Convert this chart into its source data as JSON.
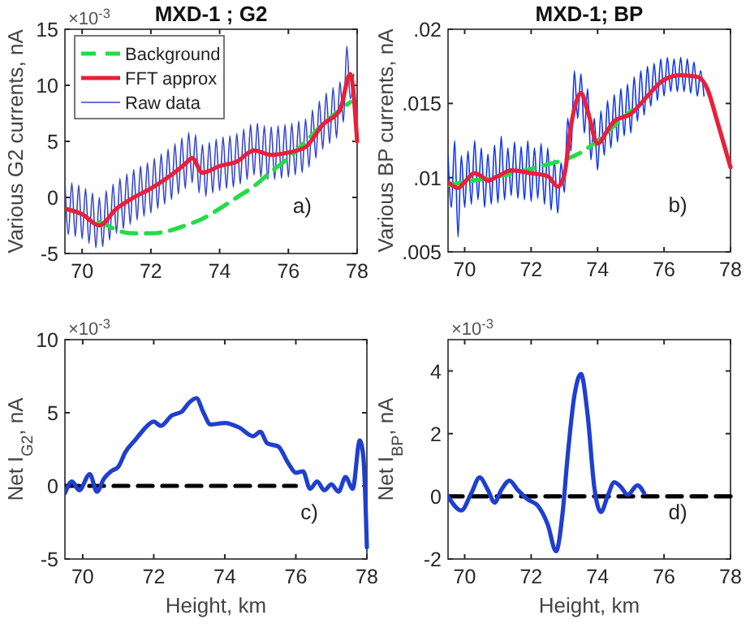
{
  "chart_data": [
    {
      "type": "line",
      "title": "MXD-1 ; G2",
      "ylabel": "Various G2 currents, nA",
      "xlim": [
        69.5,
        78
      ],
      "xticks": [
        70,
        72,
        74,
        76,
        78
      ],
      "ylim": [
        -5,
        15
      ],
      "yticks": [
        -5,
        0,
        5,
        10,
        15
      ],
      "legend": "top left",
      "annotations": [
        "a)",
        "×10$^{-3}$"
      ],
      "series": [
        {
          "name": "Background",
          "color": "#22dd44",
          "line_style": "dashed",
          "x": [
            70.5,
            70.8,
            71,
            71.5,
            72,
            72.5,
            73,
            73.5,
            74,
            74.5,
            75,
            75.5,
            76,
            76.5,
            77,
            77.5,
            77.8
          ],
          "values": [
            -2.2,
            -2.6,
            -2.9,
            -3.2,
            -3.2,
            -3,
            -2.5,
            -1.9,
            -1,
            0,
            1,
            2.3,
            3.5,
            5,
            6.5,
            7.8,
            8.5
          ]
        },
        {
          "name": "FFT approx",
          "color": "#e8203a",
          "line_style": "solid",
          "x": [
            69.5,
            70,
            70.5,
            71,
            71.5,
            72,
            72.5,
            73,
            73.2,
            73.5,
            74,
            74.5,
            75,
            75.5,
            76,
            76.5,
            77,
            77.5,
            77.8,
            78
          ],
          "values": [
            -1,
            -1.5,
            -2.5,
            -1,
            0,
            0.8,
            1.8,
            3,
            3.5,
            2.2,
            2.8,
            3.2,
            4.2,
            3.8,
            4,
            4.5,
            6.5,
            7.8,
            11,
            5
          ]
        },
        {
          "name": "Raw data",
          "color": "#3344cc",
          "line_style": "solid",
          "x": [
            69.5,
            69.6,
            69.7,
            69.8,
            69.9,
            70,
            70.1,
            70.2,
            70.3,
            70.4,
            70.5,
            70.6,
            70.7,
            70.8,
            70.9,
            71,
            71.1,
            71.2,
            71.3,
            71.4,
            71.5,
            71.6,
            71.7,
            71.8,
            71.9,
            72,
            72.1,
            72.2,
            72.3,
            72.4,
            72.5,
            72.6,
            72.7,
            72.8,
            72.9,
            73,
            73.1,
            73.2,
            73.3,
            73.4,
            73.5,
            73.6,
            73.7,
            73.8,
            73.9,
            74,
            74.1,
            74.2,
            74.3,
            74.4,
            74.5,
            74.6,
            74.7,
            74.8,
            74.9,
            75,
            75.1,
            75.2,
            75.3,
            75.4,
            75.5,
            75.6,
            75.7,
            75.8,
            75.9,
            76,
            76.1,
            76.2,
            76.3,
            76.4,
            76.5,
            76.6,
            76.7,
            76.8,
            76.9,
            77,
            77.1,
            77.2,
            77.3,
            77.4,
            77.5,
            77.6,
            77.7,
            77.8,
            77.9
          ],
          "values": [
            1.5,
            -3.3,
            1.3,
            -3.5,
            1.1,
            -3.7,
            0.8,
            -4.1,
            0.4,
            -4.5,
            0,
            -4.4,
            0.6,
            -3.8,
            1.2,
            -3.2,
            1.7,
            -2.8,
            2.1,
            -2.4,
            2.5,
            -2,
            2.8,
            -1.7,
            3.1,
            -1.4,
            3.5,
            -1,
            3.9,
            -0.6,
            4.3,
            -0.2,
            4.8,
            0.3,
            5.3,
            0.8,
            5.8,
            1.3,
            5.6,
            0.4,
            4.7,
            0.1,
            4.9,
            0.4,
            5.2,
            0.6,
            5.4,
            0.8,
            5.5,
            0.9,
            5.7,
            1.2,
            6.1,
            1.6,
            6.5,
            2,
            6.6,
            1.8,
            6.4,
            1.6,
            6.3,
            1.6,
            6.4,
            1.7,
            6.5,
            1.8,
            6.6,
            2,
            6.8,
            2.2,
            7,
            2.7,
            7.8,
            3.5,
            8.6,
            4.3,
            9.3,
            4.8,
            9.8,
            5.3,
            10.3,
            6.7,
            13.5,
            8.8,
            11
          ]
        }
      ]
    },
    {
      "type": "line",
      "title": "MXD-1; BP",
      "ylabel": "Various BP currents, nA",
      "xlim": [
        69.5,
        78
      ],
      "xticks": [
        70,
        72,
        74,
        76,
        78
      ],
      "ylim": [
        0.005,
        0.02
      ],
      "yticks": [
        {
          "value": 0.005,
          "label": ".005"
        },
        {
          "value": 0.01,
          "label": ".01"
        },
        {
          "value": 0.015,
          "label": ".015"
        },
        {
          "value": 0.02,
          "label": ".02"
        }
      ],
      "legend": false,
      "annotations": [
        "b)"
      ],
      "series": [
        {
          "color": "#22dd44",
          "line_style": "dashed",
          "x": [
            69.5,
            70,
            70.5,
            71,
            71.5,
            72,
            72.5,
            73,
            73.5,
            74,
            74.5,
            75
          ],
          "values": [
            0.0095,
            0.0097,
            0.0099,
            0.0101,
            0.0103,
            0.0106,
            0.0109,
            0.0112,
            0.0117,
            0.0125,
            0.0135,
            0.0145
          ]
        },
        {
          "color": "#e8203a",
          "line_style": "solid",
          "x": [
            69.5,
            69.8,
            70,
            70.3,
            70.5,
            70.7,
            71,
            71.4,
            72,
            72.5,
            72.8,
            73,
            73.2,
            73.5,
            73.7,
            74,
            74.3,
            74.5,
            75,
            75.5,
            76,
            76.5,
            77,
            77.3,
            77.6,
            78
          ],
          "values": [
            0.0097,
            0.0093,
            0.0097,
            0.0103,
            0.0101,
            0.0098,
            0.0101,
            0.0105,
            0.0103,
            0.0101,
            0.0094,
            0.0102,
            0.0135,
            0.0157,
            0.0145,
            0.0123,
            0.0132,
            0.0138,
            0.0143,
            0.0155,
            0.0166,
            0.0169,
            0.0168,
            0.016,
            0.0138,
            0.0107
          ]
        },
        {
          "color": "#0a32f0",
          "line_style": "solid",
          "x": [
            69.5,
            69.6,
            69.7,
            69.8,
            69.9,
            70,
            70.1,
            70.2,
            70.3,
            70.4,
            70.5,
            70.6,
            70.7,
            70.8,
            70.9,
            71,
            71.1,
            71.2,
            71.3,
            71.4,
            71.5,
            71.6,
            71.7,
            71.8,
            71.9,
            72,
            72.1,
            72.2,
            72.3,
            72.4,
            72.5,
            72.6,
            72.7,
            72.8,
            72.9,
            73,
            73.1,
            73.2,
            73.3,
            73.4,
            73.5,
            73.6,
            73.7,
            73.8,
            73.9,
            74,
            74.1,
            74.2,
            74.3,
            74.4,
            74.5,
            74.6,
            74.7,
            74.8,
            74.9,
            75,
            75.1,
            75.2,
            75.3,
            75.4,
            75.5,
            75.6,
            75.7,
            75.8,
            75.9,
            76,
            76.1,
            76.2,
            76.3,
            76.4,
            76.5,
            76.6,
            76.7,
            76.8,
            76.9,
            77,
            77.1,
            77.2
          ],
          "values": [
            0.0115,
            0.008,
            0.0125,
            0.006,
            0.0115,
            0.008,
            0.0118,
            0.0082,
            0.0125,
            0.0085,
            0.012,
            0.008,
            0.0116,
            0.0082,
            0.0122,
            0.0083,
            0.0128,
            0.0085,
            0.012,
            0.0088,
            0.0124,
            0.0086,
            0.0121,
            0.0085,
            0.0125,
            0.0084,
            0.012,
            0.0086,
            0.0123,
            0.0082,
            0.012,
            0.0078,
            0.0112,
            0.0076,
            0.011,
            0.009,
            0.014,
            0.0118,
            0.0172,
            0.014,
            0.017,
            0.013,
            0.016,
            0.0112,
            0.014,
            0.0105,
            0.0145,
            0.0115,
            0.0152,
            0.012,
            0.0156,
            0.0124,
            0.016,
            0.0128,
            0.0163,
            0.013,
            0.0168,
            0.0138,
            0.0172,
            0.0142,
            0.0175,
            0.0148,
            0.0177,
            0.0152,
            0.018,
            0.0155,
            0.0181,
            0.0158,
            0.018,
            0.0158,
            0.0181,
            0.0158,
            0.018,
            0.0157,
            0.0178,
            0.0155,
            0.0172,
            0.0155
          ]
        }
      ]
    },
    {
      "type": "line",
      "xlabel": "Height, km",
      "ylabel": "Net I$_{G2}$, nA",
      "xlim": [
        69.5,
        78
      ],
      "xticks": [
        70,
        72,
        74,
        76,
        78
      ],
      "ylim": [
        -5,
        10
      ],
      "yticks": [
        -5,
        0,
        5,
        10
      ],
      "legend": false,
      "annotations": [
        "c)",
        "×10$^{-3}$"
      ],
      "series": [
        {
          "color": "#000000",
          "line_style": "dashed",
          "x": [
            69.5,
            76
          ],
          "values": [
            0,
            0
          ]
        },
        {
          "color": "#1f3fd0",
          "line_style": "solid",
          "x": [
            69.5,
            69.7,
            69.9,
            70.2,
            70.4,
            70.6,
            70.8,
            71,
            71.2,
            71.5,
            71.7,
            72,
            72.2,
            72.5,
            72.8,
            73,
            73.2,
            73.4,
            73.6,
            74,
            74.4,
            74.8,
            75,
            75.2,
            75.5,
            75.8,
            76,
            76.2,
            76.4,
            76.6,
            76.8,
            77,
            77.2,
            77.4,
            77.6,
            77.8,
            77.9,
            78
          ],
          "values": [
            -0.5,
            0.3,
            -0.3,
            0.8,
            -0.4,
            0.5,
            1,
            1.3,
            2.3,
            3.2,
            3.8,
            4.4,
            4.1,
            4.8,
            5.1,
            5.7,
            6,
            5,
            4.2,
            4.3,
            4,
            3.4,
            3.7,
            2.9,
            2.7,
            1.5,
            0.9,
            1,
            -0.2,
            0.3,
            -0.3,
            0.1,
            -0.4,
            0.6,
            -0.2,
            3.1,
            2,
            -4.2
          ]
        }
      ]
    },
    {
      "type": "line",
      "xlabel": "Height, km",
      "ylabel": "Net I$_{BP}$, nA",
      "xlim": [
        69.5,
        78
      ],
      "xticks": [
        70,
        72,
        74,
        76,
        78
      ],
      "ylim": [
        -2,
        5
      ],
      "yticks": [
        -2,
        0,
        2,
        4
      ],
      "legend": false,
      "annotations": [
        "d)",
        "×10$^{-3}$"
      ],
      "series": [
        {
          "color": "#000000",
          "line_style": "dashed",
          "x": [
            69.5,
            78
          ],
          "values": [
            0,
            0
          ]
        },
        {
          "color": "#1f3fd0",
          "line_style": "solid",
          "x": [
            69.5,
            69.9,
            70.2,
            70.45,
            70.7,
            70.9,
            71.1,
            71.35,
            71.6,
            71.9,
            72.2,
            72.5,
            72.75,
            72.95,
            73.1,
            73.3,
            73.5,
            73.7,
            73.9,
            74.1,
            74.3,
            74.5,
            74.7,
            74.9,
            75.2,
            75.4
          ],
          "values": [
            0,
            -0.45,
            0.1,
            0.6,
            0.2,
            -0.2,
            0.2,
            0.5,
            0.2,
            -0.1,
            -0.3,
            -0.9,
            -1.75,
            -0.5,
            1.3,
            3.2,
            3.9,
            2.6,
            0.3,
            -0.5,
            0,
            0.45,
            0.3,
            0.05,
            0.35,
            0.1
          ]
        }
      ]
    }
  ]
}
